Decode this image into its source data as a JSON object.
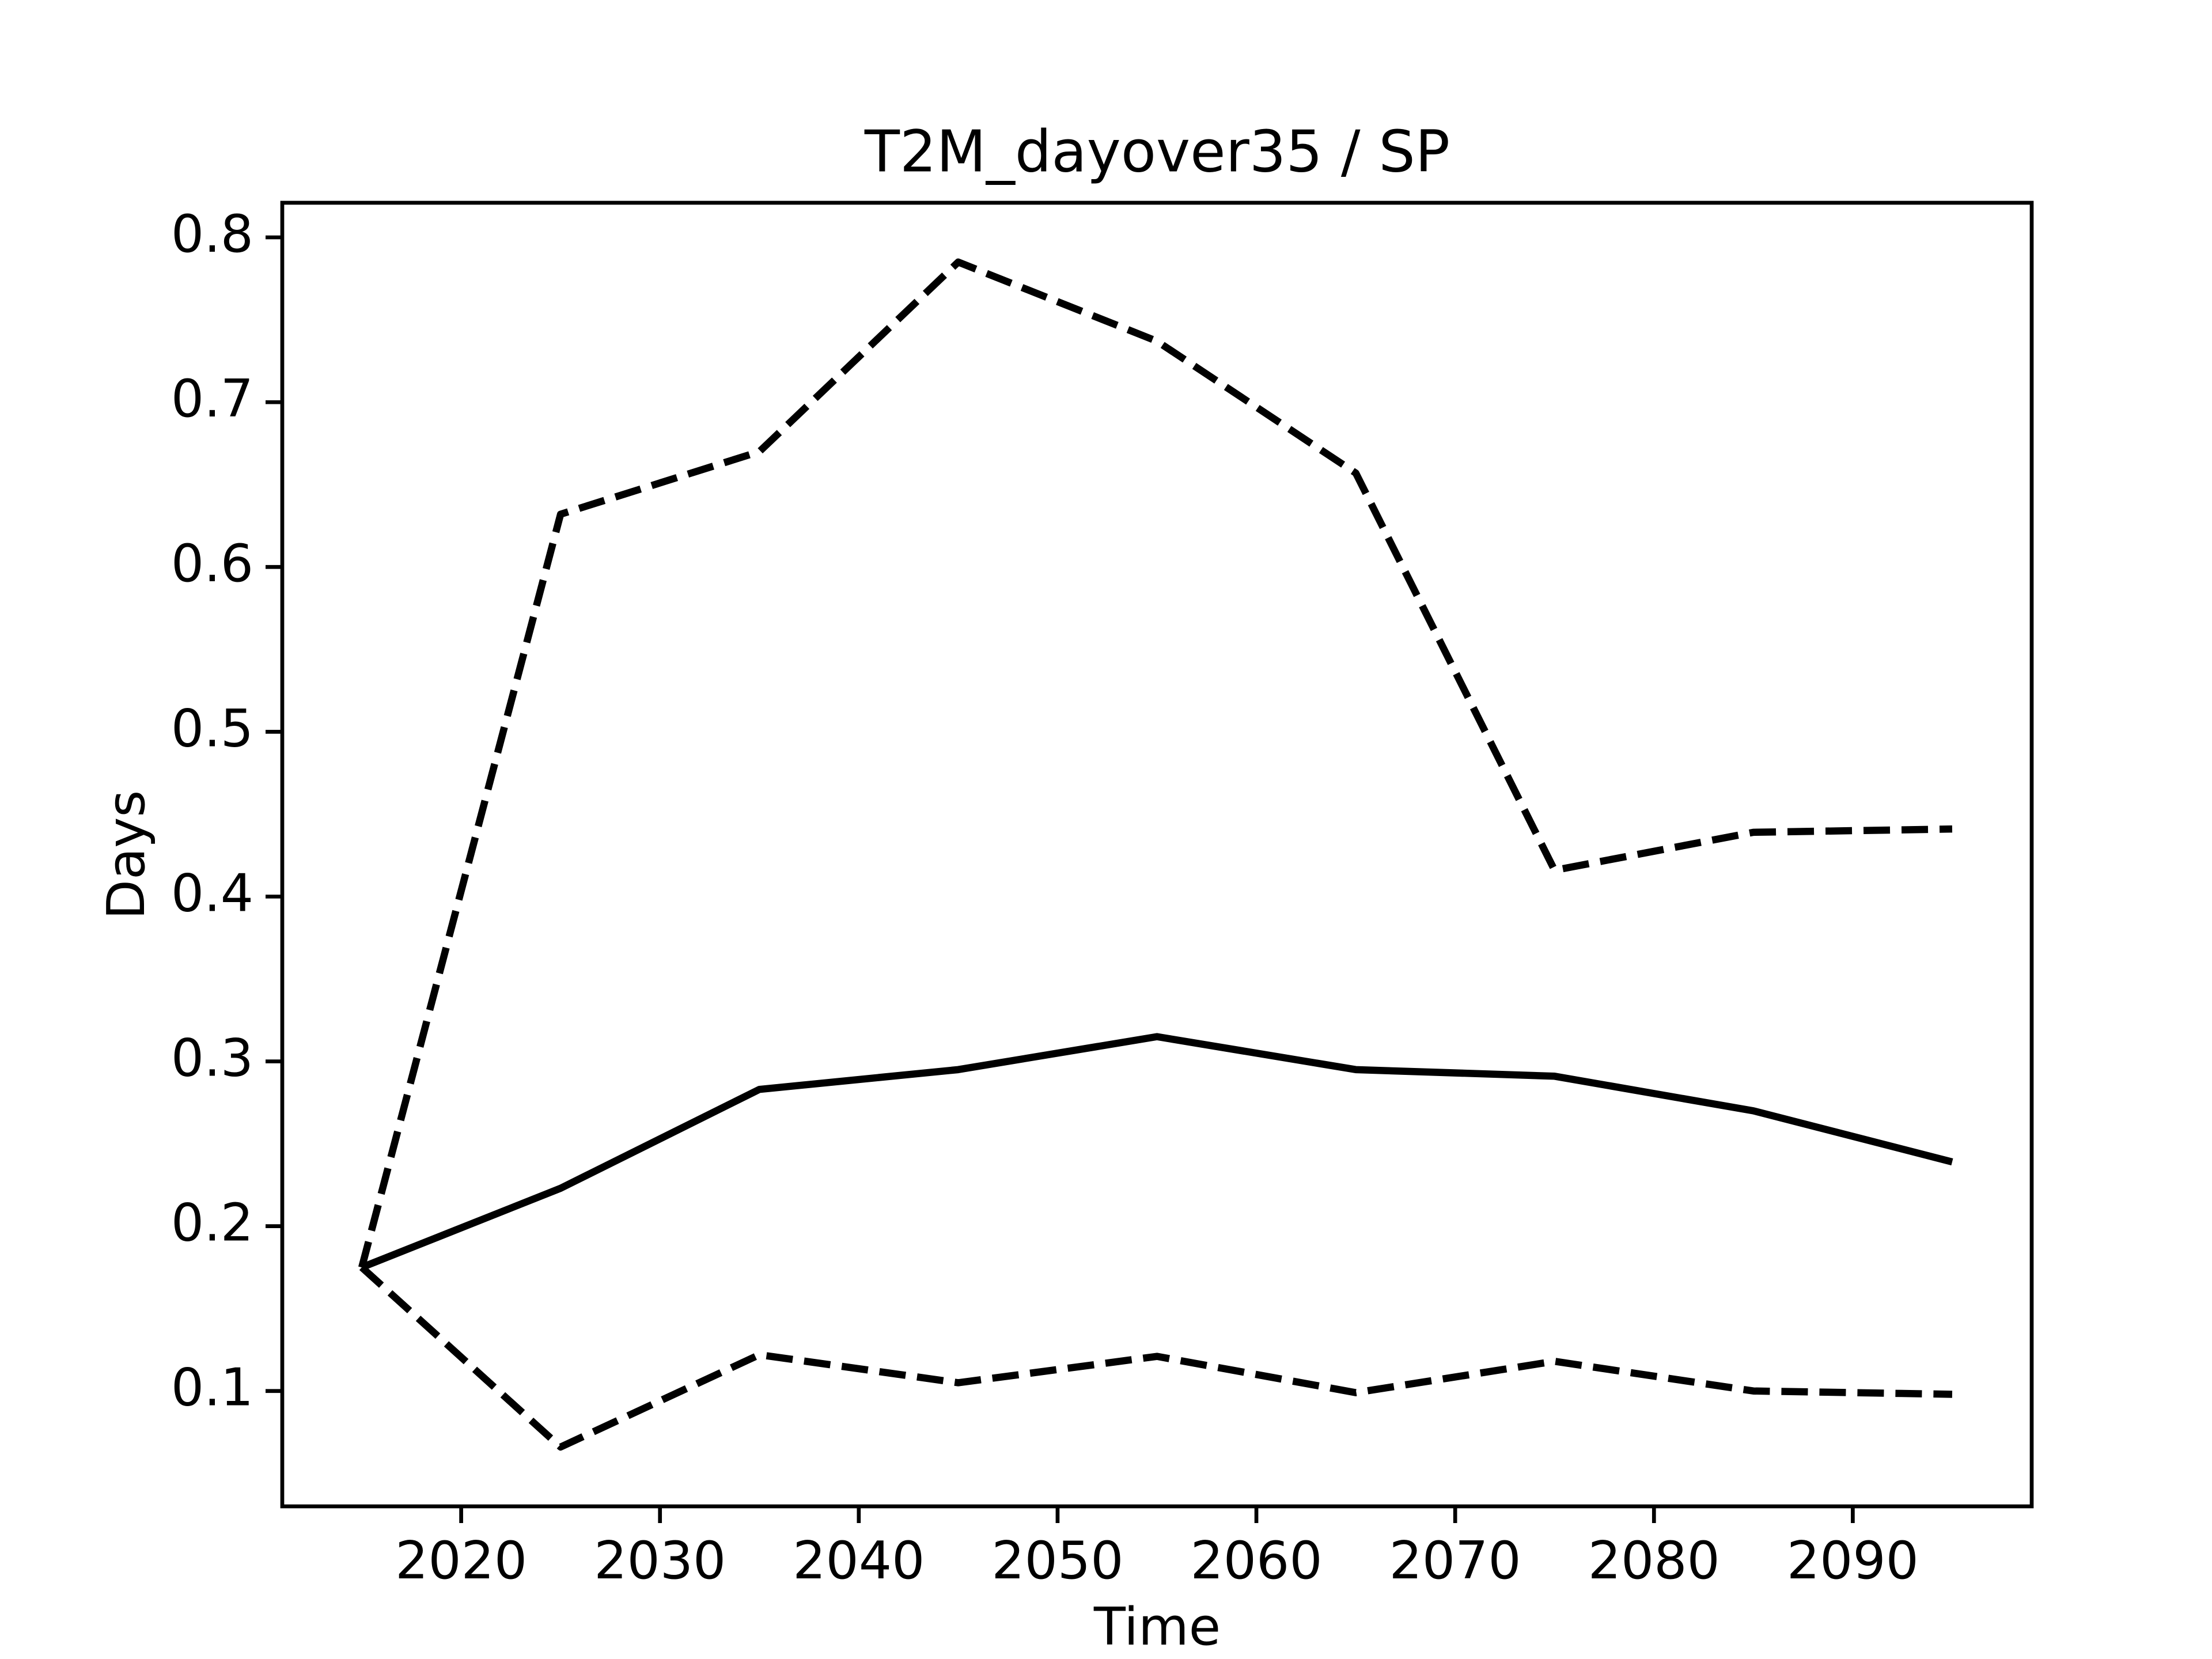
{
  "chart_data": {
    "type": "line",
    "title": "T2M_dayover35 / SP",
    "xlabel": "Time",
    "ylabel": "Days",
    "x": [
      2015,
      2025,
      2035,
      2045,
      2055,
      2065,
      2075,
      2085,
      2095
    ],
    "series": [
      {
        "color": "#000000",
        "dash": false,
        "values": [
          0.175,
          0.223,
          0.283,
          0.295,
          0.315,
          0.295,
          0.291,
          0.27,
          0.239
        ]
      },
      {
        "color": "#000000",
        "dash": true,
        "values": [
          0.175,
          0.632,
          0.67,
          0.785,
          0.737,
          0.657,
          0.416,
          0.439,
          0.441
        ]
      },
      {
        "color": "#000000",
        "dash": true,
        "values": [
          0.175,
          0.066,
          0.122,
          0.105,
          0.121,
          0.099,
          0.118,
          0.1,
          0.098
        ]
      }
    ],
    "xlim": [
      2011,
      2099
    ],
    "ylim": [
      0.03,
      0.821
    ],
    "xticks": [
      2020,
      2030,
      2040,
      2050,
      2060,
      2070,
      2080,
      2090
    ],
    "yticks": [
      0.1,
      0.2,
      0.3,
      0.4,
      0.5,
      0.6,
      0.7,
      0.8
    ],
    "grid": false
  }
}
